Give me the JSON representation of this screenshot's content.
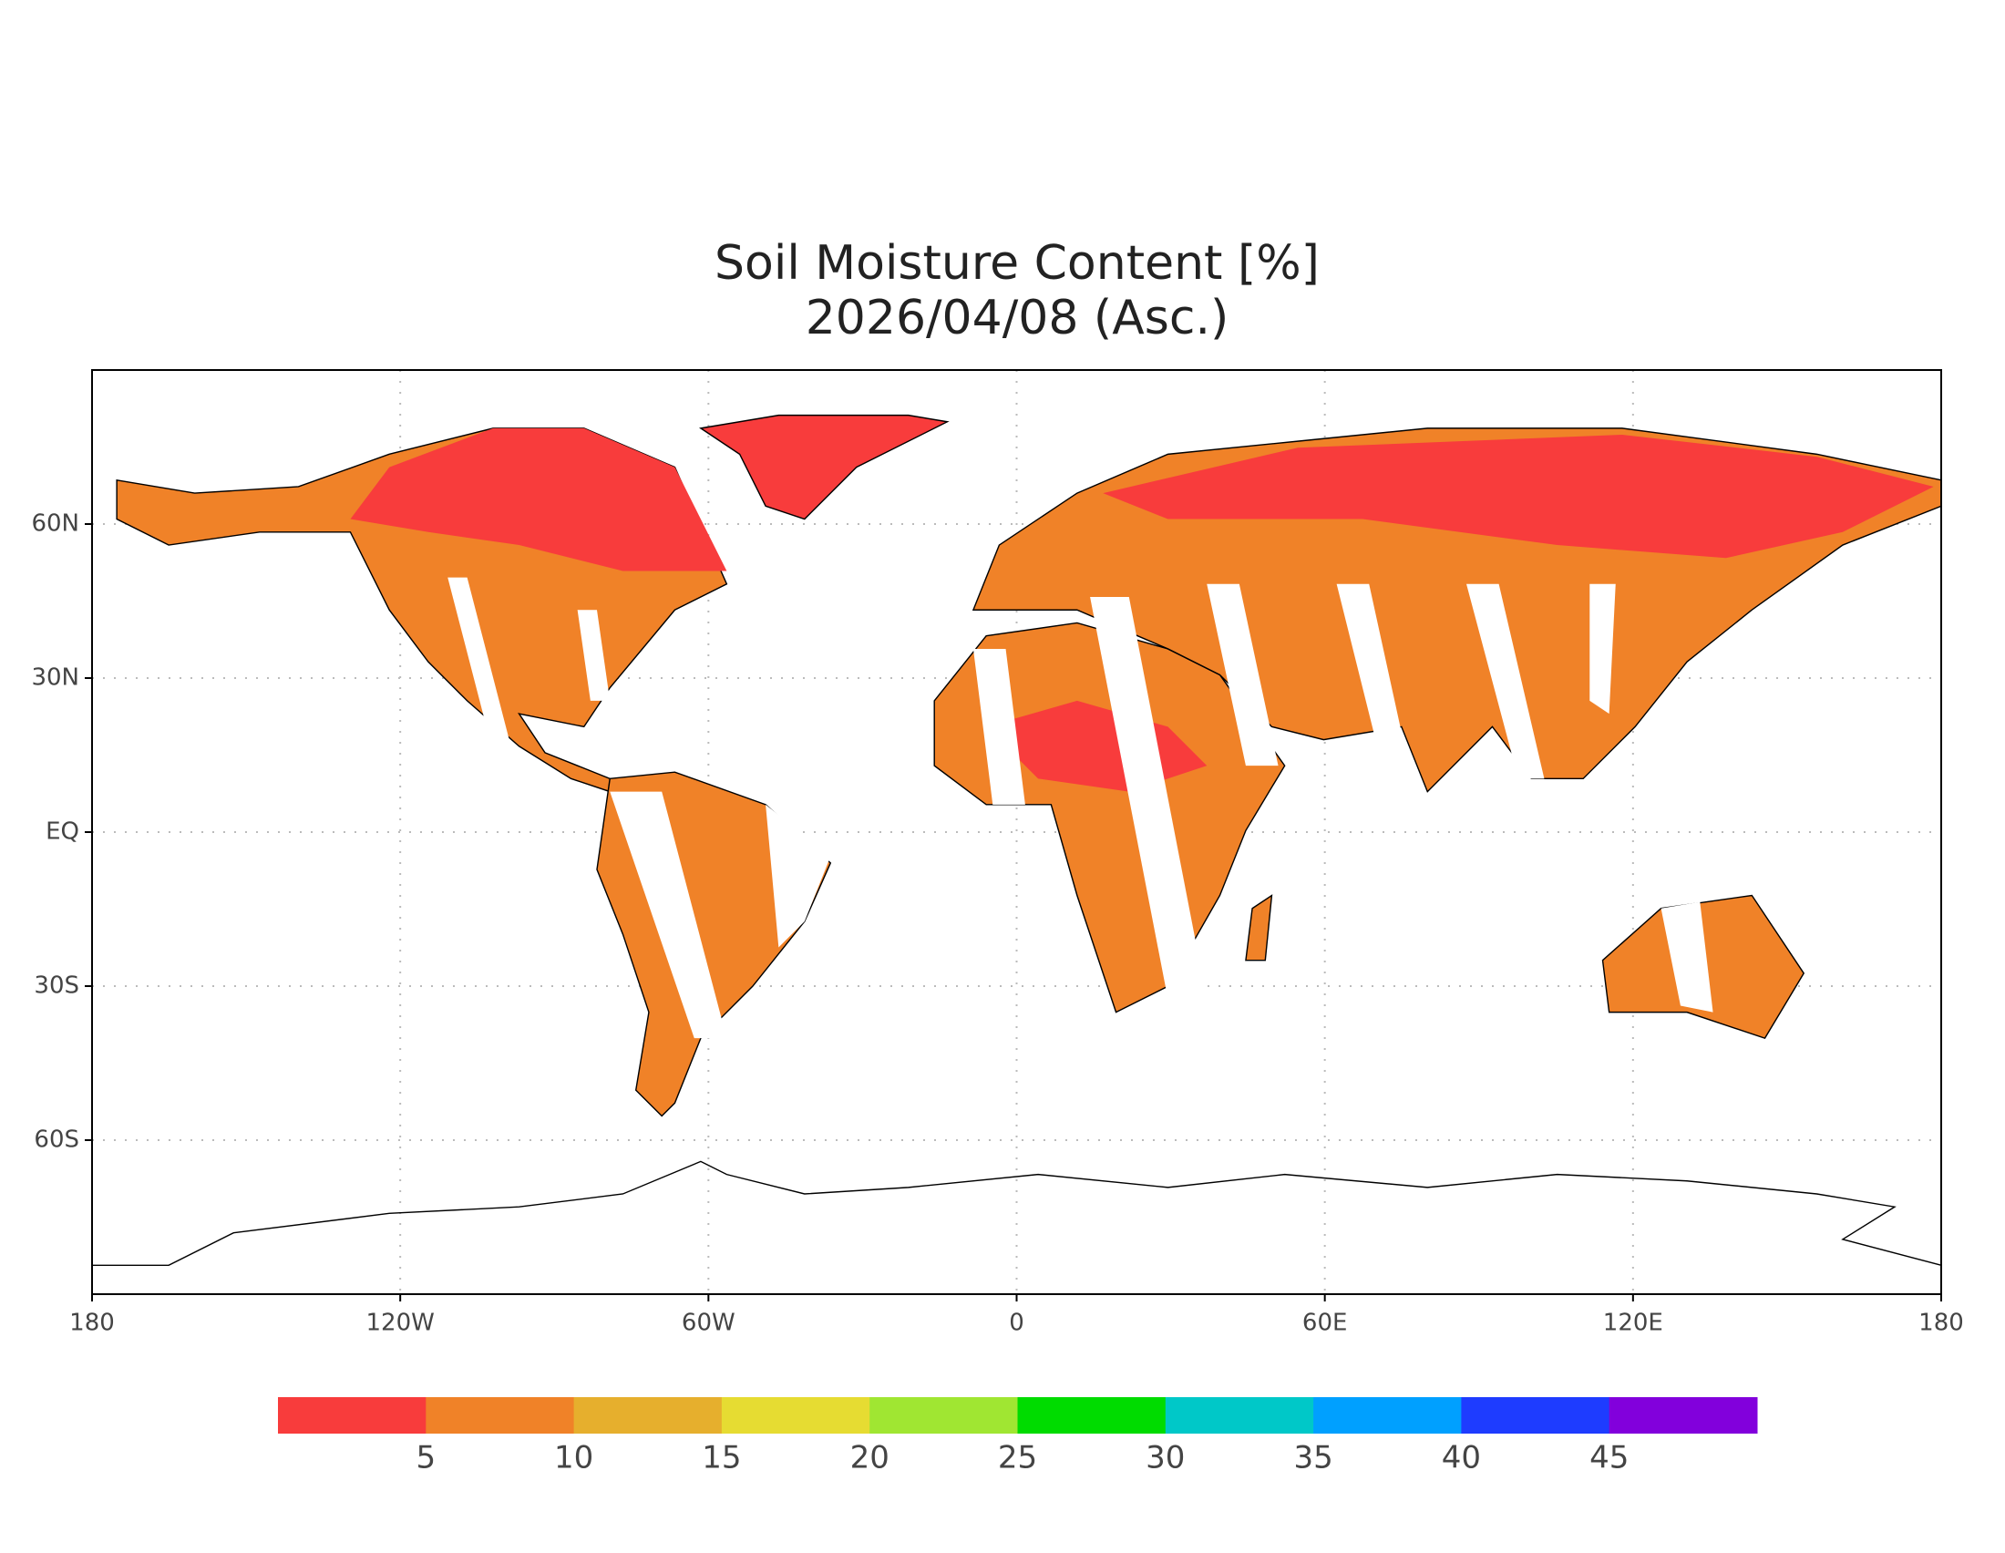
{
  "chart_data": {
    "type": "map",
    "title": "Soil Moisture Content [%]",
    "subtitle": "2026/04/08 (Asc.)",
    "xlim": [
      -180,
      180
    ],
    "ylim": [
      -90,
      90
    ],
    "xticks": [
      {
        "value": -180,
        "label": "180"
      },
      {
        "value": -120,
        "label": "120W"
      },
      {
        "value": -60,
        "label": "60W"
      },
      0,
      {
        "value": 60,
        "label": "60E"
      },
      {
        "value": 120,
        "label": "120E"
      },
      {
        "value": 180,
        "label": "180"
      }
    ],
    "yticks": [
      {
        "value": 60,
        "label": "60N"
      },
      {
        "value": 30,
        "label": "30N"
      },
      {
        "value": 0,
        "label": "EQ"
      },
      {
        "value": -30,
        "label": "30S"
      },
      {
        "value": -60,
        "label": "60S"
      }
    ],
    "grid": true,
    "colorbar": {
      "levels": [
        5,
        10,
        15,
        20,
        25,
        30,
        35,
        40,
        45
      ],
      "colors": [
        "#f83c3c",
        "#f08228",
        "#e6af2d",
        "#e6dc32",
        "#a0e632",
        "#00dc00",
        "#00c8c8",
        "#00a0ff",
        "#1e3cff",
        "#8200dc"
      ]
    }
  }
}
